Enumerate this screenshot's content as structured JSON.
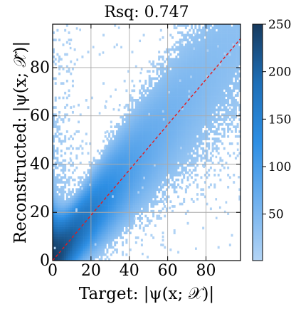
{
  "chart_data": {
    "type": "heatmap",
    "title": "Rsq: 0.747",
    "xlabel": "Target: |ψ(x; 𝒳)|",
    "ylabel": "Reconstructed: |ψ(x; 𝒳̂)|",
    "xlim": [
      0,
      98
    ],
    "ylim": [
      0,
      98
    ],
    "xticks": [
      0,
      20,
      40,
      60,
      80
    ],
    "yticks": [
      0,
      20,
      40,
      60,
      80
    ],
    "grid": true,
    "reference_line": {
      "x": [
        0,
        98
      ],
      "y": [
        0,
        92
      ],
      "style": "dashed",
      "color": "#e41a1c"
    },
    "colorbar": {
      "range": [
        1,
        250
      ],
      "ticks": [
        50,
        100,
        150,
        200,
        250
      ],
      "colormap": [
        "#b3d4f5",
        "#6fb0ee",
        "#2e8fe4",
        "#1e6fb7",
        "#173a5e"
      ]
    },
    "r_squared": 0.747
  }
}
